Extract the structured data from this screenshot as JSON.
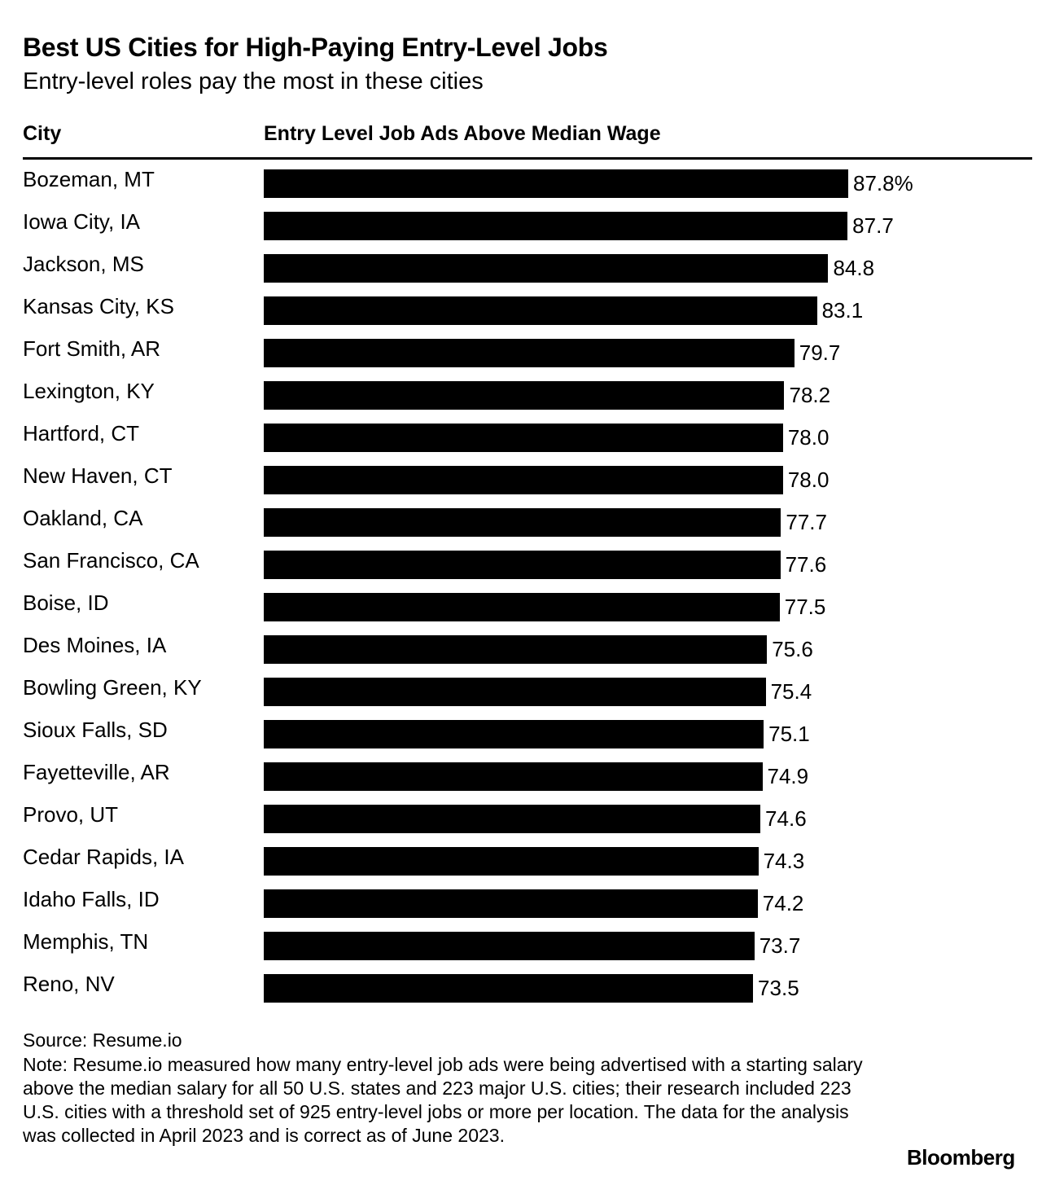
{
  "header": {
    "title": "Best US Cities for High-Paying Entry-Level Jobs",
    "subtitle": "Entry-level roles pay the most in these cities"
  },
  "columns": {
    "city": "City",
    "value": "Entry Level Job Ads Above Median Wage"
  },
  "chart_data": {
    "type": "bar",
    "orientation": "horizontal",
    "title": "Best US Cities for High-Paying Entry-Level Jobs",
    "subtitle": "Entry-level roles pay the most in these cities",
    "xlabel": "Entry Level Job Ads Above Median Wage",
    "ylabel": "City",
    "unit": "%",
    "xlim": [
      0,
      100
    ],
    "categories": [
      "Bozeman, MT",
      "Iowa City, IA",
      "Jackson, MS",
      "Kansas City, KS",
      "Fort Smith, AR",
      "Lexington, KY",
      "Hartford, CT",
      "New Haven, CT",
      "Oakland, CA",
      "San Francisco, CA",
      "Boise, ID",
      "Des Moines, IA",
      "Bowling Green, KY",
      "Sioux Falls, SD",
      "Fayetteville, AR",
      "Provo, UT",
      "Cedar Rapids, IA",
      "Idaho Falls, ID",
      "Memphis, TN",
      "Reno, NV"
    ],
    "values": [
      87.8,
      87.7,
      84.8,
      83.1,
      79.7,
      78.2,
      78.0,
      78.0,
      77.7,
      77.6,
      77.5,
      75.6,
      75.4,
      75.1,
      74.9,
      74.6,
      74.3,
      74.2,
      73.7,
      73.5
    ],
    "value_labels": [
      "87.8%",
      "87.7",
      "84.8",
      "83.1",
      "79.7",
      "78.2",
      "78.0",
      "78.0",
      "77.7",
      "77.6",
      "77.5",
      "75.6",
      "75.4",
      "75.1",
      "74.9",
      "74.6",
      "74.3",
      "74.2",
      "73.7",
      "73.5"
    ],
    "bar_color": "#000000"
  },
  "footer": {
    "source": "Source: Resume.io",
    "note": "Note: Resume.io measured how many entry-level job ads were being advertised with a starting salary above the median salary for all 50 U.S. states and 223 major U.S. cities; their research included 223 U.S. cities with a threshold set of 925 entry-level jobs or more per location. The data for the analysis was collected in April 2023 and is correct as of June 2023.",
    "brand": "Bloomberg"
  }
}
